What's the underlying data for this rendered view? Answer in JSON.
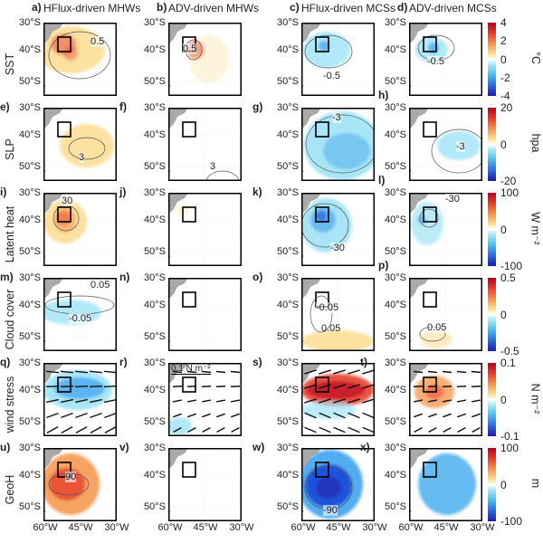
{
  "columns": [
    "HFlux-driven MHWs",
    "ADV-driven MHWs",
    "HFlux-driven MCSs",
    "ADV-driven MCSs"
  ],
  "lat_ticks": [
    "30°S",
    "40°S",
    "50°S"
  ],
  "lon_ticks": [
    "60°W",
    "45°W",
    "30°W"
  ],
  "rows": [
    {
      "label": "SST",
      "unit": "°C",
      "ticks": [
        "4",
        "2",
        "0",
        "-2",
        "-4"
      ],
      "letters": [
        "a)",
        "b)",
        "c)",
        "d)"
      ],
      "contours": [
        "0.5",
        "0.5",
        "-0.5",
        "-0.5"
      ]
    },
    {
      "label": "SLP",
      "unit": "hpa",
      "ticks": [
        "20",
        "0",
        "-20"
      ],
      "letters": [
        "e)",
        "f)",
        "g)",
        "h)"
      ],
      "contours": [
        "3",
        "3",
        "-3",
        "-3"
      ]
    },
    {
      "label": "Latent heat",
      "unit": "W m⁻²",
      "ticks": [
        "100",
        "0",
        "-100"
      ],
      "letters": [
        "i)",
        "j)",
        "k)",
        "l)"
      ],
      "contours": [
        "30",
        "",
        "-30",
        "-30"
      ]
    },
    {
      "label": "Cloud cover",
      "unit": "",
      "ticks": [
        "0.5",
        "0",
        "-0.5"
      ],
      "letters": [
        "m)",
        "n)",
        "o)",
        "p)"
      ],
      "contours": [
        "-0.05",
        "",
        "-0.05",
        "0.05"
      ],
      "contours2": [
        "0.05",
        "",
        "0.05",
        ""
      ]
    },
    {
      "label": "wind stress",
      "unit": "N m⁻²",
      "ticks": [
        "0.1",
        "0",
        "-0.1"
      ],
      "letters": [
        "q)",
        "r)",
        "s)",
        "t)"
      ],
      "contours": [
        "",
        "",
        "",
        ""
      ],
      "ref_vector": "0.1 N m⁻²"
    },
    {
      "label": "GeoH",
      "unit": "m",
      "ticks": [
        "100",
        "0",
        "-100"
      ],
      "letters": [
        "u)",
        "v)",
        "w)",
        "x)"
      ],
      "contours": [
        "90",
        "",
        "-90",
        ""
      ]
    }
  ],
  "colors": {
    "warm": "#e8542f",
    "light_warm": "#fbd88a",
    "cool": "#4ec1ef",
    "deep_cool": "#1e4fd8",
    "land": "#a9a9a9"
  }
}
